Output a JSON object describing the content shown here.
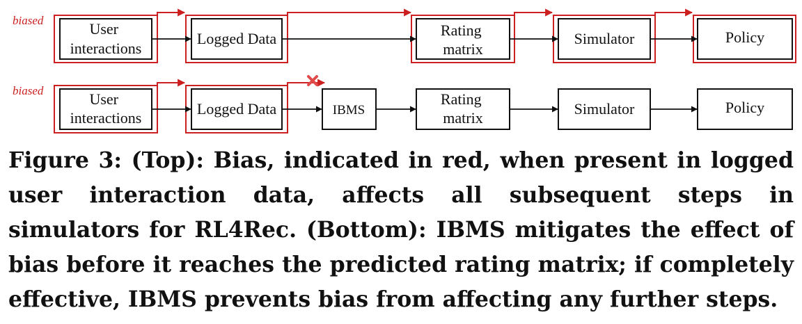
{
  "diagram": {
    "biased_label": "biased",
    "top_row": {
      "boxes": [
        "User\ninteractions",
        "Logged Data",
        "Rating\nmatrix",
        "Simulator",
        "Policy"
      ]
    },
    "bottom_row": {
      "boxes": [
        "User\ninteractions",
        "Logged Data",
        "IBMS",
        "Rating\nmatrix",
        "Simulator",
        "Policy"
      ]
    },
    "colors": {
      "bias": "#cc1f1f",
      "box": "#111111",
      "cross": "#e04a4a"
    }
  },
  "caption": {
    "text": "Figure 3: (Top): Bias, indicated in red, when present in logged user interaction data, affects all subsequent steps in simulators for RL4Rec. (Bottom): IBMS mitigates the effect of bias before it reaches the predicted rating matrix; if completely effective, IBMS prevents bias from affecting any further steps."
  }
}
